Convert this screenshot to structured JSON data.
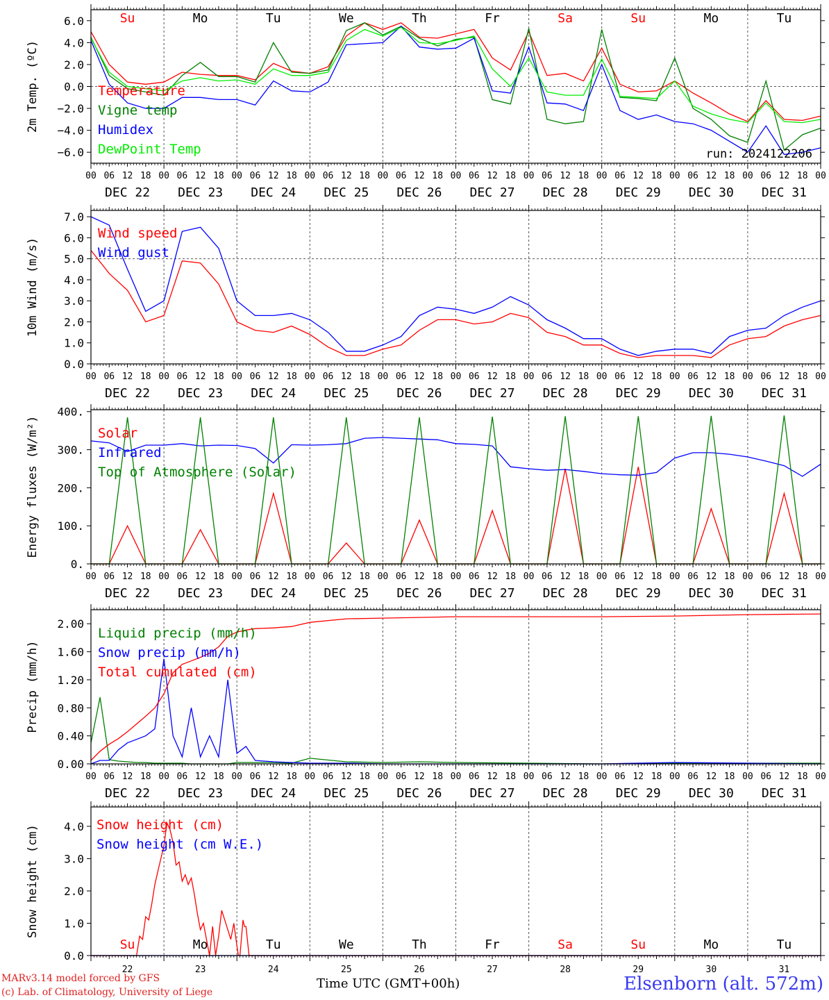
{
  "footer": {
    "model_line": "MARv3.14 model forced by GFS",
    "lab_line": "(c) Lab. of Climatology, University of Liege",
    "time_label": "Time UTC (GMT+00h)",
    "station": "Elsenborn (alt. 572m)"
  },
  "colors": {
    "red": "#ff0000",
    "blue": "#0000ff",
    "green": "#008000",
    "light_green": "#00ee00"
  },
  "days": {
    "weekdays": [
      "Su",
      "Mo",
      "Tu",
      "We",
      "Th",
      "Fr",
      "Sa",
      "Su",
      "Mo",
      "Tu"
    ],
    "weekday_colors": [
      "#ff0000",
      "#000000",
      "#000000",
      "#000000",
      "#000000",
      "#000000",
      "#ff0000",
      "#ff0000",
      "#000000",
      "#000000"
    ],
    "dates": [
      "DEC 22",
      "DEC 23",
      "DEC 24",
      "DEC 25",
      "DEC 26",
      "DEC 27",
      "DEC 28",
      "DEC 29",
      "DEC 30",
      "DEC 31"
    ],
    "day_numbers": [
      "22",
      "23",
      "24",
      "25",
      "26",
      "27",
      "28",
      "29",
      "30",
      "31"
    ],
    "hour_ticks": [
      "00",
      "06",
      "12",
      "18"
    ],
    "final_hour": "00"
  },
  "chart_data": [
    {
      "type": "line",
      "ylabel": "2m Temp. (ºC)",
      "ylim": [
        -7.0,
        7.0
      ],
      "yticks": [
        -6.0,
        -4.0,
        -2.0,
        0.0,
        2.0,
        4.0,
        6.0
      ],
      "ytick_labels": [
        "−6.0",
        "−4.0",
        "−2.0",
        "0.0",
        "2.0",
        "4.0",
        "6.0"
      ],
      "ref_line": 0,
      "annotation": "run: 2024122206",
      "x_hours": [
        0,
        6,
        12,
        18,
        24,
        30,
        36,
        42,
        48,
        54,
        60,
        66,
        72,
        78,
        84,
        90,
        96,
        102,
        108,
        114,
        120,
        126,
        132,
        138,
        144,
        150,
        156,
        162,
        168,
        174,
        180,
        186,
        192,
        198,
        204,
        210,
        216,
        222,
        228,
        234,
        240
      ],
      "series": [
        {
          "name": "Temperature",
          "color": "#ff0000",
          "values": [
            5.0,
            2.0,
            0.4,
            0.2,
            0.4,
            1.3,
            1.1,
            1.0,
            1.0,
            0.6,
            2.1,
            1.4,
            1.2,
            1.8,
            4.6,
            5.8,
            5.2,
            5.8,
            4.5,
            4.4,
            4.8,
            5.2,
            2.6,
            1.5,
            5.0,
            1.0,
            1.2,
            0.5,
            3.5,
            0.2,
            -0.5,
            -0.4,
            0.5,
            -0.6,
            -1.5,
            -2.5,
            -3.2,
            -1.3,
            -3.0,
            -3.1,
            -2.7
          ]
        },
        {
          "name": "Vigne temp",
          "color": "#008000",
          "values": [
            4.5,
            1.0,
            -0.2,
            -0.5,
            -0.8,
            1.0,
            2.2,
            0.9,
            0.9,
            0.4,
            4.0,
            1.3,
            1.2,
            1.5,
            5.1,
            5.8,
            4.7,
            5.5,
            4.4,
            3.7,
            4.3,
            4.5,
            -1.2,
            -1.6,
            5.3,
            -3.0,
            -3.4,
            -3.2,
            5.2,
            -1.0,
            -1.1,
            -1.3,
            2.6,
            -2.0,
            -3.0,
            -4.5,
            -5.1,
            0.5,
            -5.8,
            -4.4,
            -3.8
          ]
        },
        {
          "name": "Humidex",
          "color": "#0000ff",
          "values": [
            4.2,
            0.2,
            -1.5,
            -2.0,
            -2.0,
            -1.0,
            -1.0,
            -1.2,
            -1.2,
            -1.7,
            0.5,
            -0.4,
            -0.5,
            0.4,
            3.8,
            3.9,
            4.0,
            5.5,
            3.6,
            3.4,
            3.5,
            4.4,
            -0.4,
            -0.6,
            3.6,
            -1.5,
            -1.6,
            -2.2,
            2.0,
            -2.2,
            -3.0,
            -2.6,
            -3.2,
            -3.4,
            -4.0,
            -5.0,
            -6.0,
            -3.6,
            -6.2,
            -6.0,
            -5.6
          ]
        },
        {
          "name": "DewPoint Temp",
          "color": "#00ee00",
          "values": [
            4.4,
            1.3,
            0.0,
            -0.2,
            -0.4,
            0.5,
            0.8,
            0.5,
            0.6,
            0.2,
            1.6,
            1.0,
            1.0,
            1.3,
            4.2,
            5.2,
            4.6,
            5.4,
            4.0,
            3.9,
            4.2,
            4.6,
            1.6,
            0.0,
            2.6,
            -0.5,
            -0.8,
            -0.8,
            2.5,
            -0.9,
            -1.0,
            -1.1,
            0.5,
            -1.8,
            -2.5,
            -3.0,
            -3.3,
            -1.5,
            -3.2,
            -3.3,
            -3.0
          ]
        }
      ]
    },
    {
      "type": "line",
      "ylabel": "10m Wind (m/s)",
      "ylim": [
        0,
        7.3
      ],
      "yticks": [
        0,
        1,
        2,
        3,
        4,
        5,
        6,
        7
      ],
      "ytick_labels": [
        "0.0",
        "1.0",
        "2.0",
        "3.0",
        "4.0",
        "5.0",
        "6.0",
        "7.0"
      ],
      "ref_line": 5.0,
      "x_hours": [
        0,
        6,
        12,
        18,
        24,
        30,
        36,
        42,
        48,
        54,
        60,
        66,
        72,
        78,
        84,
        90,
        96,
        102,
        108,
        114,
        120,
        126,
        132,
        138,
        144,
        150,
        156,
        162,
        168,
        174,
        180,
        186,
        192,
        198,
        204,
        210,
        216,
        222,
        228,
        234,
        240
      ],
      "series": [
        {
          "name": "Wind speed",
          "color": "#ff0000",
          "values": [
            5.4,
            4.3,
            3.5,
            2.0,
            2.3,
            4.9,
            4.8,
            3.8,
            2.0,
            1.6,
            1.5,
            1.8,
            1.4,
            0.8,
            0.4,
            0.4,
            0.7,
            0.9,
            1.6,
            2.1,
            2.1,
            1.9,
            2.0,
            2.4,
            2.2,
            1.5,
            1.3,
            0.9,
            0.9,
            0.5,
            0.3,
            0.4,
            0.4,
            0.4,
            0.3,
            0.9,
            1.2,
            1.3,
            1.8,
            2.1,
            2.3
          ]
        },
        {
          "name": "Wind gust",
          "color": "#0000ff",
          "values": [
            7.0,
            6.6,
            4.5,
            2.5,
            3.0,
            6.3,
            6.5,
            5.5,
            3.0,
            2.3,
            2.3,
            2.4,
            2.1,
            1.5,
            0.6,
            0.6,
            0.9,
            1.3,
            2.3,
            2.7,
            2.6,
            2.4,
            2.7,
            3.2,
            2.8,
            2.1,
            1.7,
            1.2,
            1.2,
            0.7,
            0.4,
            0.6,
            0.7,
            0.7,
            0.5,
            1.3,
            1.6,
            1.7,
            2.3,
            2.7,
            3.0
          ]
        }
      ]
    },
    {
      "type": "line",
      "ylabel": "Energy fluxes (W/m²)",
      "ylim": [
        0,
        405
      ],
      "yticks": [
        0,
        100,
        200,
        300,
        400
      ],
      "ytick_labels": [
        "0.",
        "100.",
        "200.",
        "300.",
        "400."
      ],
      "x_hours": [
        0,
        6,
        12,
        18,
        24,
        30,
        36,
        42,
        48,
        54,
        60,
        66,
        72,
        78,
        84,
        90,
        96,
        102,
        108,
        114,
        120,
        126,
        132,
        138,
        144,
        150,
        156,
        162,
        168,
        174,
        180,
        186,
        192,
        198,
        204,
        210,
        216,
        222,
        228,
        234,
        240
      ],
      "series": [
        {
          "name": "Solar",
          "color": "#ff0000",
          "values": [
            0,
            0,
            100,
            0,
            0,
            0,
            90,
            0,
            0,
            0,
            185,
            0,
            0,
            0,
            55,
            0,
            0,
            0,
            115,
            0,
            0,
            0,
            140,
            0,
            0,
            0,
            250,
            0,
            0,
            0,
            255,
            0,
            0,
            0,
            145,
            0,
            0,
            0,
            185,
            0,
            0
          ]
        },
        {
          "name": "Infrared",
          "color": "#0000ff",
          "values": [
            323,
            318,
            295,
            312,
            312,
            316,
            310,
            312,
            311,
            303,
            265,
            313,
            312,
            313,
            316,
            330,
            332,
            330,
            328,
            326,
            316,
            314,
            310,
            255,
            250,
            246,
            248,
            243,
            237,
            234,
            233,
            240,
            278,
            292,
            292,
            288,
            281,
            270,
            258,
            230,
            262
          ]
        },
        {
          "name": "Top of Atmosphere (Solar)",
          "color": "#008000",
          "values": [
            0,
            0,
            385,
            0,
            0,
            0,
            385,
            0,
            0,
            0,
            385,
            0,
            0,
            0,
            385,
            0,
            0,
            0,
            385,
            0,
            0,
            0,
            387,
            0,
            0,
            0,
            388,
            0,
            0,
            0,
            388,
            0,
            0,
            0,
            389,
            0,
            0,
            0,
            390,
            0,
            0
          ]
        }
      ]
    },
    {
      "type": "line",
      "ylabel": "Precip (mm/h)",
      "ylim": [
        0,
        2.2
      ],
      "yticks": [
        0,
        0.4,
        0.8,
        1.2,
        1.6,
        2.0
      ],
      "ytick_labels": [
        "0.00",
        "0.40",
        "0.80",
        "1.20",
        "1.60",
        "2.00"
      ],
      "x_hours": [
        0,
        3,
        6,
        9,
        12,
        15,
        18,
        21,
        24,
        27,
        30,
        33,
        36,
        39,
        42,
        45,
        48,
        51,
        54,
        60,
        66,
        72,
        84,
        96,
        108,
        120,
        144,
        168,
        192,
        216,
        240
      ],
      "series": [
        {
          "name": "Liquid precip (mm/h)",
          "color": "#008000",
          "values": [
            0.3,
            0.95,
            0.06,
            0.04,
            0.03,
            0.02,
            0.02,
            0.01,
            0.01,
            0.01,
            0.01,
            0.0,
            0.0,
            0.0,
            0.0,
            0.0,
            0.02,
            0.02,
            0.02,
            0.02,
            0.01,
            0.08,
            0.03,
            0.02,
            0.03,
            0.02,
            0.01,
            0.0,
            0.01,
            0.01,
            0.01
          ]
        },
        {
          "name": "Snow precip (mm/h)",
          "color": "#0000ff",
          "values": [
            0.0,
            0.05,
            0.05,
            0.2,
            0.3,
            0.35,
            0.4,
            0.5,
            1.5,
            0.4,
            0.1,
            0.8,
            0.1,
            0.4,
            0.1,
            1.2,
            0.15,
            0.25,
            0.05,
            0.03,
            0.02,
            0.01,
            0.01,
            0.0,
            0.0,
            0.0,
            0.0,
            0.0,
            0.02,
            0.01,
            0.0
          ]
        },
        {
          "name": "Total cumulated (cm)",
          "color": "#ff0000",
          "values": [
            0.05,
            0.18,
            0.28,
            0.36,
            0.46,
            0.57,
            0.68,
            0.8,
            1.0,
            1.3,
            1.42,
            1.47,
            1.52,
            1.58,
            1.67,
            1.82,
            1.88,
            1.91,
            1.93,
            1.94,
            1.96,
            2.02,
            2.07,
            2.08,
            2.09,
            2.1,
            2.1,
            2.1,
            2.11,
            2.13,
            2.14
          ]
        }
      ]
    },
    {
      "type": "line",
      "ylabel": "Snow height (cm)",
      "ylim": [
        0,
        4.6
      ],
      "yticks": [
        0,
        1,
        2,
        3,
        4
      ],
      "ytick_labels": [
        "0.0",
        "1.0",
        "2.0",
        "3.0",
        "4.0"
      ],
      "x_hours": [
        0,
        15,
        16,
        17,
        18,
        19,
        20,
        21,
        22,
        23,
        24,
        25,
        26,
        27,
        28,
        29,
        30,
        31,
        32,
        33,
        34,
        35,
        36,
        37,
        38,
        39,
        40,
        41,
        42,
        43,
        44,
        45,
        46,
        47,
        48,
        48.5,
        49,
        50,
        50.5,
        51,
        52,
        240
      ],
      "series": [
        {
          "name": "Snow height (cm)",
          "color": "#ff0000",
          "values": [
            0,
            0,
            0.6,
            0.5,
            1.2,
            1.1,
            1.6,
            2.2,
            2.6,
            3.0,
            3.4,
            4.1,
            3.9,
            3.5,
            2.8,
            2.9,
            2.3,
            2.5,
            2.2,
            2.4,
            1.9,
            1.3,
            0.8,
            1.0,
            0.5,
            0.0,
            0.9,
            0.0,
            0.6,
            1.4,
            1.1,
            0.8,
            0.5,
            1.0,
            0.3,
            0.0,
            0.0,
            1.1,
            0.9,
            0.9,
            0.0,
            0.0
          ]
        },
        {
          "name": "Snow height (cm W.E.)",
          "color": "#0000ff",
          "values": [
            0,
            0,
            0,
            0,
            0,
            0,
            0,
            0,
            0,
            0,
            0,
            0,
            0,
            0,
            0,
            0,
            0,
            0,
            0,
            0,
            0,
            0,
            0,
            0,
            0,
            0,
            0,
            0,
            0,
            0,
            0,
            0,
            0,
            0,
            0,
            0,
            0,
            0,
            0,
            0,
            0,
            0
          ]
        }
      ]
    }
  ]
}
